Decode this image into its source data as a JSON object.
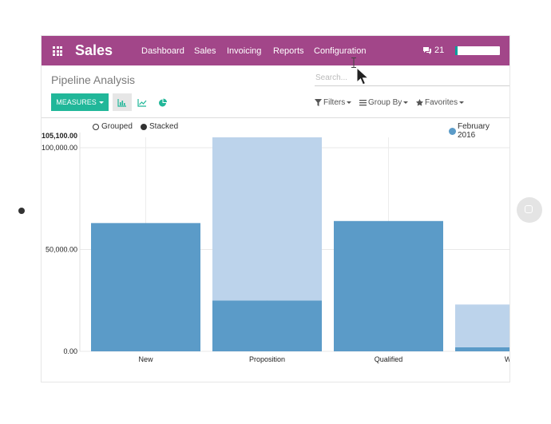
{
  "navbar": {
    "app_name": "Sales",
    "menu": [
      "Dashboard",
      "Sales",
      "Invoicing",
      "Reports",
      "Configuration"
    ],
    "messages_count": "21",
    "bg_color": "#a24689"
  },
  "page": {
    "title": "Pipeline Analysis"
  },
  "search": {
    "placeholder": "Search..."
  },
  "toolbar": {
    "measures_label": "MEASURES",
    "views": [
      "bar-chart-icon",
      "line-chart-icon",
      "pie-chart-icon"
    ],
    "active_view": "bar-chart-icon",
    "filters_label": "Filters",
    "groupby_label": "Group By",
    "favorites_label": "Favorites"
  },
  "chart_options": {
    "grouped_label": "Grouped",
    "stacked_label": "Stacked",
    "selected": "Stacked"
  },
  "chart_data": {
    "type": "bar",
    "stacked": true,
    "categories": [
      "New",
      "Proposition",
      "Qualified",
      "Won"
    ],
    "visible_category_labels": [
      "New",
      "Proposition",
      "Qualified",
      "Wo"
    ],
    "series": [
      {
        "name": "February 2016",
        "color": "#5b9bc8",
        "values": [
          63000,
          25000,
          64000,
          2000
        ]
      },
      {
        "color": "#bcd3eb",
        "values": [
          0,
          80100,
          0,
          21000
        ]
      }
    ],
    "ylim": [
      0,
      105100
    ],
    "y_max_label": "105,100.00",
    "y_ticks": [
      0,
      50000,
      100000
    ],
    "y_tick_labels": [
      "0.00",
      "50,000.00",
      "100,000.00"
    ],
    "legend_position": "top-right",
    "grid": true
  }
}
